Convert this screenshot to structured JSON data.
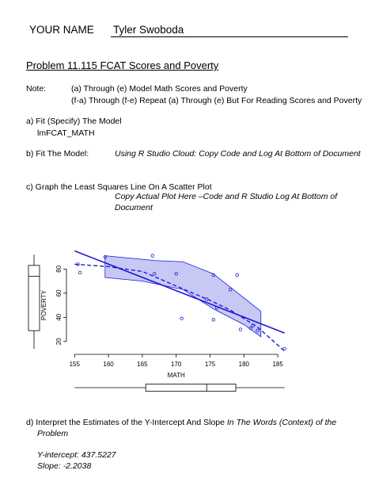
{
  "header": {
    "name_label": "YOUR NAME",
    "name_value": "Tyler Swoboda"
  },
  "title": "Problem 11.115 FCAT Scores and Poverty",
  "note": {
    "label": "Note:",
    "line1": "(a) Through (e) Model Math Scores and Poverty",
    "line2": "(f-a) Through (f-e) Repeat (a) Through (e) But For Reading Scores and Poverty"
  },
  "part_a": {
    "label": "a)  Fit (Specify) The Model",
    "model": "lmFCAT_MATH"
  },
  "part_b": {
    "label": "b)  Fit The Model:",
    "instruction": "Using R Studio Cloud: Copy Code and Log At Bottom of Document"
  },
  "part_c": {
    "label": "c)  Graph the Least Squares Line On A Scatter Plot",
    "instruction_line1": "Copy Actual Plot Here –Code and R Studio Log At Bottom of",
    "instruction_line2": "Document"
  },
  "part_d": {
    "label_main": "d)  Interpret the Estimates of the Y-Intercept And Slope",
    "label_italic": "In The Words (Context) of the",
    "label_line2": "Problem",
    "intercept": "Y-intercept: 437.5227",
    "slope": "Slope: -2.2038"
  },
  "chart_data": {
    "type": "scatter",
    "xlabel": "MATH",
    "ylabel": "POVERTY",
    "xlim": [
      154.5,
      186.5
    ],
    "ylim": [
      12,
      96
    ],
    "x_ticks": [
      "155",
      "160",
      "165",
      "170",
      "175",
      "180",
      "185"
    ],
    "y_ticks": [
      "20",
      "40",
      "60",
      "80"
    ],
    "points": [
      {
        "x": 155.5,
        "y": 84
      },
      {
        "x": 155.8,
        "y": 77
      },
      {
        "x": 159.5,
        "y": 90
      },
      {
        "x": 166.5,
        "y": 91
      },
      {
        "x": 166.8,
        "y": 76
      },
      {
        "x": 170.0,
        "y": 76
      },
      {
        "x": 170.8,
        "y": 39
      },
      {
        "x": 174.5,
        "y": 55
      },
      {
        "x": 175.5,
        "y": 75
      },
      {
        "x": 175.5,
        "y": 38
      },
      {
        "x": 176.0,
        "y": 48
      },
      {
        "x": 178.0,
        "y": 63
      },
      {
        "x": 179.0,
        "y": 75
      },
      {
        "x": 179.5,
        "y": 30
      },
      {
        "x": 181.0,
        "y": 31
      },
      {
        "x": 181.3,
        "y": 33
      },
      {
        "x": 182.0,
        "y": 29
      },
      {
        "x": 186.0,
        "y": 14
      }
    ],
    "fit_line": {
      "x": [
        155,
        186
      ],
      "y": [
        95,
        27
      ]
    },
    "confidence_band": {
      "upper": [
        {
          "x": 159.5,
          "y": 91
        },
        {
          "x": 167,
          "y": 87
        },
        {
          "x": 171,
          "y": 86
        },
        {
          "x": 175.5,
          "y": 76
        },
        {
          "x": 182.5,
          "y": 45
        }
      ],
      "lower": [
        {
          "x": 159.5,
          "y": 73
        },
        {
          "x": 165,
          "y": 70
        },
        {
          "x": 171,
          "y": 63
        },
        {
          "x": 175.5,
          "y": 47
        },
        {
          "x": 180,
          "y": 34
        },
        {
          "x": 182.5,
          "y": 24
        }
      ]
    },
    "smooth_line": {
      "x": [
        155,
        160,
        165,
        170,
        175,
        178,
        182,
        186
      ],
      "y": [
        84,
        82,
        78,
        66,
        54,
        46,
        32,
        12
      ]
    },
    "x_boxplot": {
      "min": 155,
      "q1": 165.5,
      "median": 174.5,
      "q3": 178.8,
      "max": 186
    },
    "y_boxplot": {
      "min": 14,
      "q1": 29,
      "median": 74,
      "q3": 83,
      "max": 92
    },
    "colors": {
      "band": "#c8c8f5",
      "line": "#1a1ad6",
      "points": "#1a1ad6"
    }
  }
}
